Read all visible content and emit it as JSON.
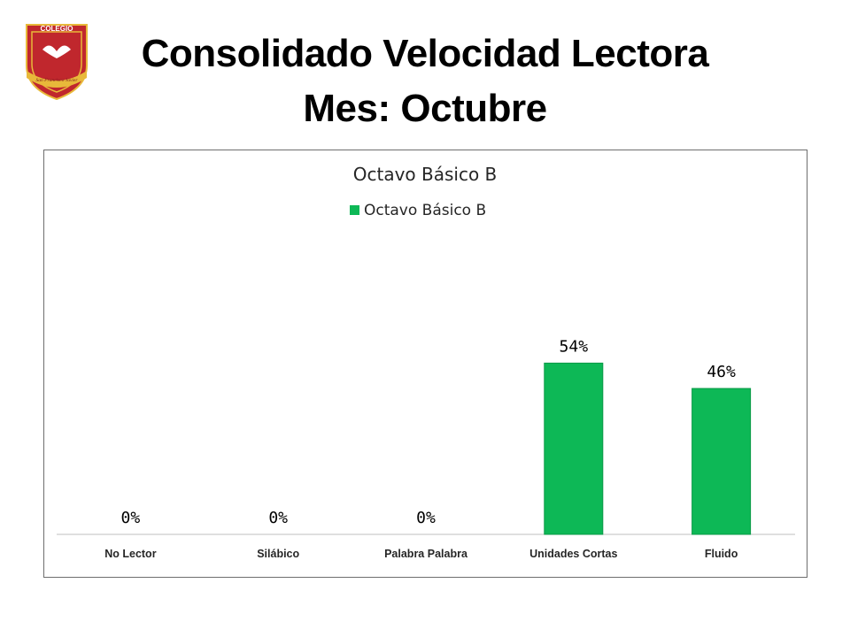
{
  "header": {
    "title_line1": "Consolidado Velocidad Lectora",
    "title_line2": "Mes: Octubre",
    "logo_text_top": "COLEGIO",
    "logo_text_band": "San Francisco Javier"
  },
  "colors": {
    "bar": "#0db856",
    "bar_edge": "#0a9a47",
    "axis": "#bfbfbf",
    "logo_red": "#c0272d",
    "logo_gold": "#e8b93a"
  },
  "chart_data": {
    "type": "bar",
    "title": "Octavo Básico B",
    "legend_position": "top",
    "grid": false,
    "categories": [
      "No Lector",
      "Silábico",
      "Palabra Palabra",
      "Unidades Cortas",
      "Fluido"
    ],
    "series": [
      {
        "name": "Octavo Básico B",
        "values": [
          0,
          0,
          0,
          54,
          46
        ]
      }
    ],
    "data_labels": [
      "0%",
      "0%",
      "0%",
      "54%",
      "46%"
    ],
    "ylim": [
      0,
      100
    ],
    "xlabel": "",
    "ylabel": ""
  }
}
